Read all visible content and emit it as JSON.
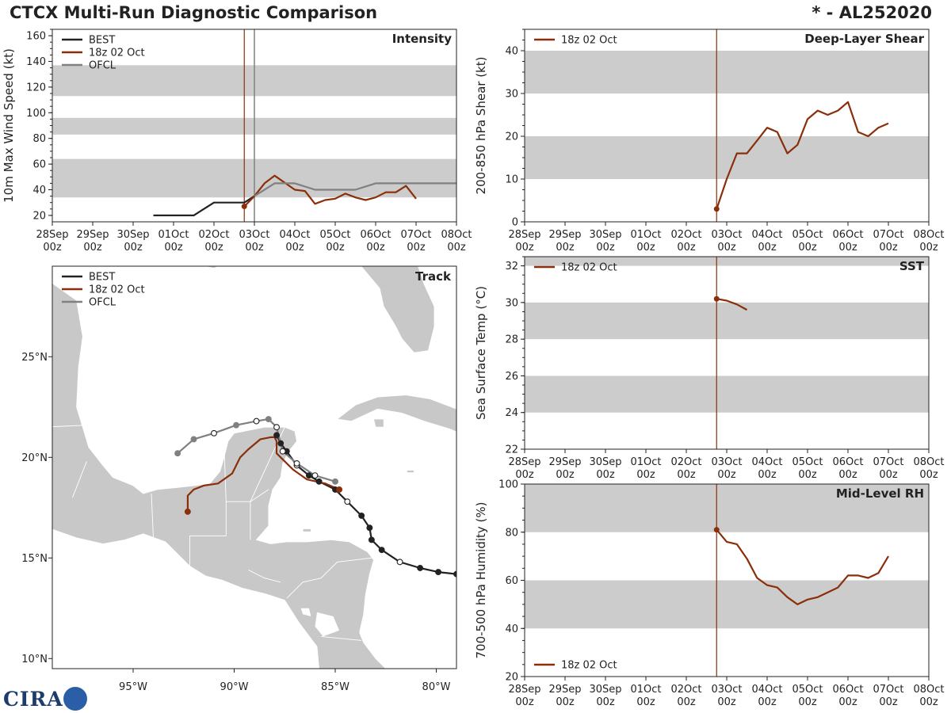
{
  "header": {
    "title": "CTCX Multi-Run Diagnostic Comparison",
    "storm_id": "* - AL252020"
  },
  "logo": {
    "text": "CIRA",
    "badge": "CSU"
  },
  "colors": {
    "best": "#222222",
    "run": "#8b2e0a",
    "ofcl": "#808080",
    "band": "#cccccc",
    "land": "#c8c8c8",
    "water": "#ffffff"
  },
  "time_axis": {
    "ticks": [
      "28Sep\n00z",
      "29Sep\n00z",
      "30Sep\n00z",
      "01Oct\n00z",
      "02Oct\n00z",
      "03Oct\n00z",
      "04Oct\n00z",
      "05Oct\n00z",
      "06Oct\n00z",
      "07Oct\n00z",
      "08Oct\n00z"
    ],
    "xlim_days": [
      0,
      10
    ],
    "init_day": 4.75,
    "ofcl_day": 5.0
  },
  "chart_data": [
    {
      "id": "intensity",
      "type": "line",
      "title": "Intensity",
      "ylabel": "10m Max Wind Speed (kt)",
      "ylim": [
        15,
        165
      ],
      "yticks": [
        20,
        40,
        60,
        80,
        100,
        120,
        140,
        160
      ],
      "bands": [
        [
          34,
          64
        ],
        [
          83,
          96
        ],
        [
          113,
          137
        ]
      ],
      "legend": [
        "BEST",
        "18z 02 Oct",
        "OFCL"
      ],
      "series": [
        {
          "name": "BEST",
          "key": "best",
          "x": [
            2.5,
            3.5,
            4.0,
            4.5,
            4.75,
            5.0
          ],
          "y": [
            20,
            20,
            30,
            30,
            30,
            35
          ]
        },
        {
          "name": "18z 02 Oct",
          "key": "run",
          "x": [
            4.75,
            5.0,
            5.25,
            5.5,
            6.0,
            6.25,
            6.5,
            6.75,
            7.0,
            7.25,
            7.5,
            7.75,
            8.0,
            8.25,
            8.5,
            8.75,
            9.0
          ],
          "y": [
            27,
            35,
            45,
            51,
            40,
            39,
            29,
            32,
            33,
            37,
            34,
            32,
            34,
            38,
            38,
            43,
            33
          ]
        },
        {
          "name": "OFCL",
          "key": "ofcl",
          "x": [
            5.0,
            5.5,
            6.0,
            6.5,
            7.0,
            7.5,
            8.0,
            9.0,
            10.0
          ],
          "y": [
            35,
            45,
            45,
            40,
            40,
            40,
            45,
            45,
            45
          ]
        }
      ],
      "markers": [
        {
          "series": "run",
          "x": 4.75,
          "y": 27
        }
      ]
    },
    {
      "id": "shear",
      "type": "line",
      "title": "Deep-Layer Shear",
      "ylabel": "200-850 hPa Shear (kt)",
      "ylim": [
        0,
        45
      ],
      "yticks": [
        0,
        10,
        20,
        30,
        40
      ],
      "bands": [
        [
          10,
          20
        ],
        [
          30,
          40
        ]
      ],
      "legend": [
        "18z 02 Oct"
      ],
      "series": [
        {
          "name": "18z 02 Oct",
          "key": "run",
          "x": [
            4.75,
            5.0,
            5.25,
            5.5,
            5.75,
            6.0,
            6.25,
            6.5,
            6.75,
            7.0,
            7.25,
            7.5,
            7.75,
            8.0,
            8.25,
            8.5,
            8.75,
            9.0
          ],
          "y": [
            3,
            10,
            16,
            16,
            19,
            22,
            21,
            16,
            18,
            24,
            26,
            25,
            26,
            28,
            21,
            20,
            22,
            23
          ]
        }
      ],
      "markers": [
        {
          "series": "run",
          "x": 4.75,
          "y": 3
        }
      ]
    },
    {
      "id": "sst",
      "type": "line",
      "title": "SST",
      "ylabel": "Sea Surface Temp (°C)",
      "ylim": [
        22,
        32.5
      ],
      "yticks": [
        22,
        24,
        26,
        28,
        30,
        32
      ],
      "bands": [
        [
          24,
          26
        ],
        [
          28,
          30
        ],
        [
          32,
          32.5
        ]
      ],
      "legend": [
        "18z 02 Oct"
      ],
      "series": [
        {
          "name": "18z 02 Oct",
          "key": "run",
          "x": [
            4.75,
            5.0,
            5.25,
            5.5
          ],
          "y": [
            30.2,
            30.1,
            29.9,
            29.6
          ]
        }
      ],
      "markers": [
        {
          "series": "run",
          "x": 4.75,
          "y": 30.2
        }
      ]
    },
    {
      "id": "rh",
      "type": "line",
      "title": "Mid-Level RH",
      "ylabel": "700-500 hPa Humidity (%)",
      "ylim": [
        20,
        100
      ],
      "yticks": [
        20,
        40,
        60,
        80,
        100
      ],
      "bands": [
        [
          40,
          60
        ],
        [
          80,
          100
        ]
      ],
      "legend": [
        "18z 02 Oct"
      ],
      "legend_position": "lower-left",
      "series": [
        {
          "name": "18z 02 Oct",
          "key": "run",
          "x": [
            4.75,
            5.0,
            5.25,
            5.5,
            5.75,
            6.0,
            6.25,
            6.5,
            6.75,
            7.0,
            7.25,
            7.5,
            7.75,
            8.0,
            8.25,
            8.5,
            8.75,
            9.0
          ],
          "y": [
            81,
            76,
            75,
            69,
            61,
            58,
            57,
            53,
            50,
            52,
            53,
            55,
            57,
            62,
            62,
            61,
            63,
            70
          ]
        }
      ],
      "markers": [
        {
          "series": "run",
          "x": 4.75,
          "y": 81
        }
      ]
    },
    {
      "id": "track",
      "type": "scatter",
      "title": "Track",
      "xlim": [
        -99,
        -79
      ],
      "ylim": [
        9.5,
        29.5
      ],
      "xticks": [
        -95,
        -90,
        -85,
        -80
      ],
      "xtick_labels": [
        "95°W",
        "90°W",
        "85°W",
        "80°W"
      ],
      "yticks": [
        10,
        15,
        20,
        25
      ],
      "ytick_labels": [
        "10°N",
        "15°N",
        "20°N",
        "25°N"
      ],
      "legend": [
        "BEST",
        "18z 02 Oct",
        "OFCL"
      ],
      "series": [
        {
          "name": "BEST",
          "key": "best",
          "lon": [
            -79.0,
            -79.9,
            -80.8,
            -81.8,
            -82.7,
            -83.2,
            -83.3,
            -83.7,
            -84.4,
            -85.0,
            -85.8,
            -86.3,
            -86.9,
            -87.4,
            -87.7,
            -87.9
          ],
          "lat": [
            14.2,
            14.3,
            14.5,
            14.8,
            15.4,
            15.9,
            16.5,
            17.1,
            17.8,
            18.4,
            18.8,
            19.1,
            19.6,
            20.3,
            20.7,
            21.1
          ],
          "filled": [
            true,
            true,
            true,
            false,
            true,
            true,
            true,
            true,
            false,
            true,
            true,
            true,
            false,
            true,
            true,
            true
          ]
        },
        {
          "name": "18z 02 Oct",
          "key": "run",
          "lon": [
            -84.8,
            -85.5,
            -86.4,
            -87.1,
            -87.6,
            -87.9,
            -87.9,
            -88.0,
            -88.2,
            -88.7,
            -89.3,
            -89.7,
            -90.1,
            -90.8,
            -91.5,
            -92.0,
            -92.3,
            -92.3,
            -92.3
          ],
          "lat": [
            18.4,
            18.7,
            18.9,
            19.4,
            19.9,
            20.2,
            20.8,
            21.0,
            21.0,
            20.9,
            20.4,
            20.0,
            19.2,
            18.7,
            18.6,
            18.4,
            18.1,
            17.6,
            17.3
          ],
          "filled": [
            true,
            false,
            false,
            false,
            false,
            false,
            false,
            false,
            false,
            false,
            false,
            false,
            false,
            false,
            false,
            false,
            false,
            false,
            true
          ]
        },
        {
          "name": "OFCL",
          "key": "ofcl",
          "lon": [
            -85.0,
            -86.0,
            -86.9,
            -87.6,
            -87.9,
            -88.3,
            -88.9,
            -89.9,
            -91.0,
            -92.0,
            -92.8
          ],
          "lat": [
            18.8,
            19.1,
            19.7,
            20.3,
            21.5,
            21.9,
            21.8,
            21.6,
            21.2,
            20.9,
            20.2
          ],
          "filled": [
            true,
            false,
            false,
            false,
            false,
            true,
            false,
            true,
            false,
            true,
            true
          ]
        }
      ]
    }
  ]
}
